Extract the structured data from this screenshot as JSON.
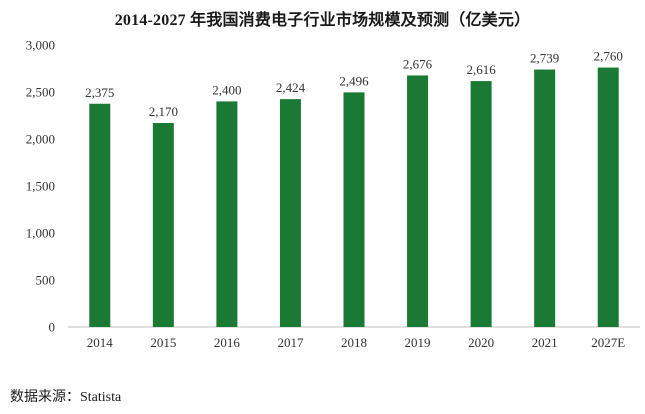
{
  "chart_data": {
    "type": "bar",
    "title": "2014-2027 年我国消费电子行业市场规模及预测（亿美元）",
    "categories": [
      "2014",
      "2015",
      "2016",
      "2017",
      "2018",
      "2019",
      "2020",
      "2021",
      "2027E"
    ],
    "values": [
      2375,
      2170,
      2400,
      2424,
      2496,
      2676,
      2616,
      2739,
      2760
    ],
    "value_labels": [
      "2,375",
      "2,170",
      "2,400",
      "2,424",
      "2,496",
      "2,676",
      "2,616",
      "2,739",
      "2,760"
    ],
    "ylim": [
      0,
      3000
    ],
    "yticks": [
      0,
      500,
      1000,
      1500,
      2000,
      2500,
      3000
    ],
    "ytick_labels": [
      "0",
      "500",
      "1,000",
      "1,500",
      "2,000",
      "2,500",
      "3,000"
    ],
    "xlabel": "",
    "ylabel": "",
    "grid": false,
    "bar_color": "#1a7a34"
  },
  "source": "数据来源：Statista"
}
